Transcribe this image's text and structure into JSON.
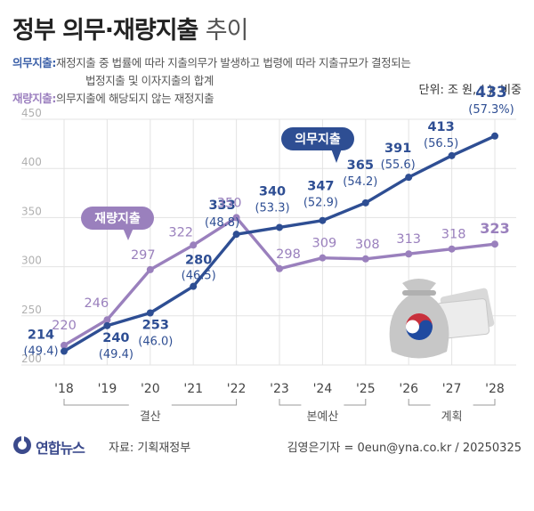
{
  "title": {
    "main": "정부 의무·재량지출",
    "sub": "추이"
  },
  "definitions": {
    "mandatory_key": "의무지출:",
    "mandatory_text_1": "재정지출 중 법률에 따라 지출의무가 발생하고 법령에 따라 지출규모가 결정되는",
    "mandatory_text_2": "법정지출 및 이자지출의 합계",
    "discretionary_key": "재량지출:",
    "discretionary_text": "의무지출에 해당되지 않는 재정지출"
  },
  "unit_note": "단위: 조 원, (  ): 비중",
  "chart_data": {
    "type": "line",
    "x": [
      "'18",
      "'19",
      "'20",
      "'21",
      "'22",
      "'23",
      "'24",
      "'25",
      "'26",
      "'27",
      "'28"
    ],
    "ylim": [
      200,
      450
    ],
    "yticks": [
      200,
      250,
      300,
      350,
      400,
      450
    ],
    "grid": true,
    "series": [
      {
        "name": "의무지출",
        "color": "#2e4e93",
        "values": [
          214,
          240,
          253,
          280,
          333,
          340,
          347,
          365,
          391,
          413,
          433
        ],
        "shares": [
          "(49.4)",
          "(49.4)",
          "(46.0)",
          "(46.5)",
          "(48.8)",
          "(53.3)",
          "(52.9)",
          "(54.2)",
          "(55.6)",
          "(56.5)",
          "(57.3%)"
        ]
      },
      {
        "name": "재량지출",
        "color": "#9a80bd",
        "values": [
          220,
          246,
          297,
          322,
          350,
          298,
          309,
          308,
          313,
          318,
          323
        ]
      }
    ],
    "groups": [
      {
        "label": "결산",
        "from": 0,
        "to": 4
      },
      {
        "label": "본예산",
        "from": 5,
        "to": 7
      },
      {
        "label": "계획",
        "from": 8,
        "to": 10
      }
    ]
  },
  "footer": {
    "logo": "연합뉴스",
    "source": "자료: 기획재정부",
    "credit": "김영은기자 = 0eun@yna.co.kr / 20250325"
  }
}
